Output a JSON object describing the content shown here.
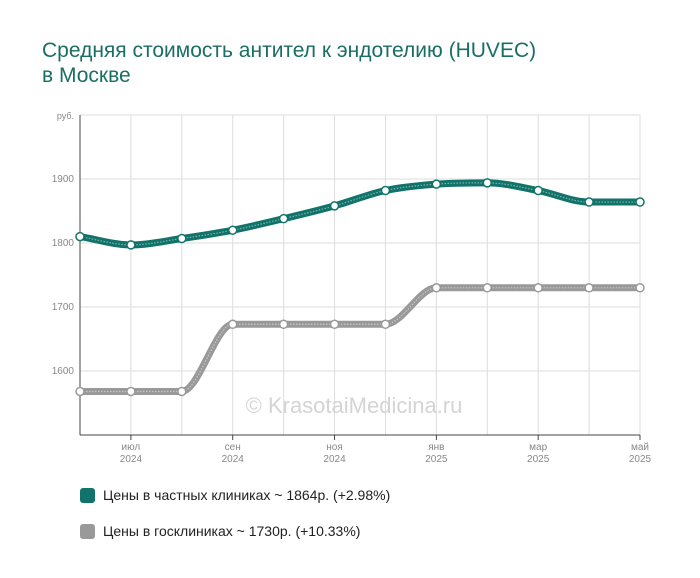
{
  "chart_title": {
    "line1": "Средняя стоимость антител к эндотелию (HUVEC)",
    "line2": "в Москве"
  },
  "watermark": "© KrasotaiMedicina.ru",
  "chart_data": {
    "type": "line",
    "title": "Средняя стоимость антител к эндотелию (HUVEC) в Москве",
    "ylabel": "руб.",
    "ylim": [
      1500,
      2000
    ],
    "yticks": [
      1600,
      1700,
      1800,
      1900
    ],
    "grid": true,
    "legend_position": "bottom",
    "x": [
      "2024-06",
      "2024-07",
      "2024-08",
      "2024-09",
      "2024-10",
      "2024-11",
      "2024-12",
      "2025-01",
      "2025-02",
      "2025-03",
      "2025-04",
      "2025-05"
    ],
    "xtick_labels": [
      {
        "index": 1,
        "month": "июл",
        "year": "2024"
      },
      {
        "index": 3,
        "month": "сен",
        "year": "2024"
      },
      {
        "index": 5,
        "month": "ноя",
        "year": "2024"
      },
      {
        "index": 7,
        "month": "янв",
        "year": "2025"
      },
      {
        "index": 9,
        "month": "мар",
        "year": "2025"
      },
      {
        "index": 11,
        "month": "май",
        "year": "2025"
      }
    ],
    "series": [
      {
        "name": "Цены в частных клиниках",
        "color": "#11736a",
        "values": [
          1810,
          1797,
          1807,
          1820,
          1838,
          1858,
          1882,
          1892,
          1894,
          1882,
          1864,
          1864
        ],
        "legend_label": "Цены в частных клиниках ~ 1864р. (+2.98%)"
      },
      {
        "name": "Цены в госклиниках",
        "color": "#999999",
        "values": [
          1568,
          1568,
          1568,
          1673,
          1673,
          1673,
          1673,
          1730,
          1730,
          1730,
          1730,
          1730
        ],
        "legend_label": "Цены в госклиниках ~ 1730р. (+10.33%)"
      }
    ]
  }
}
